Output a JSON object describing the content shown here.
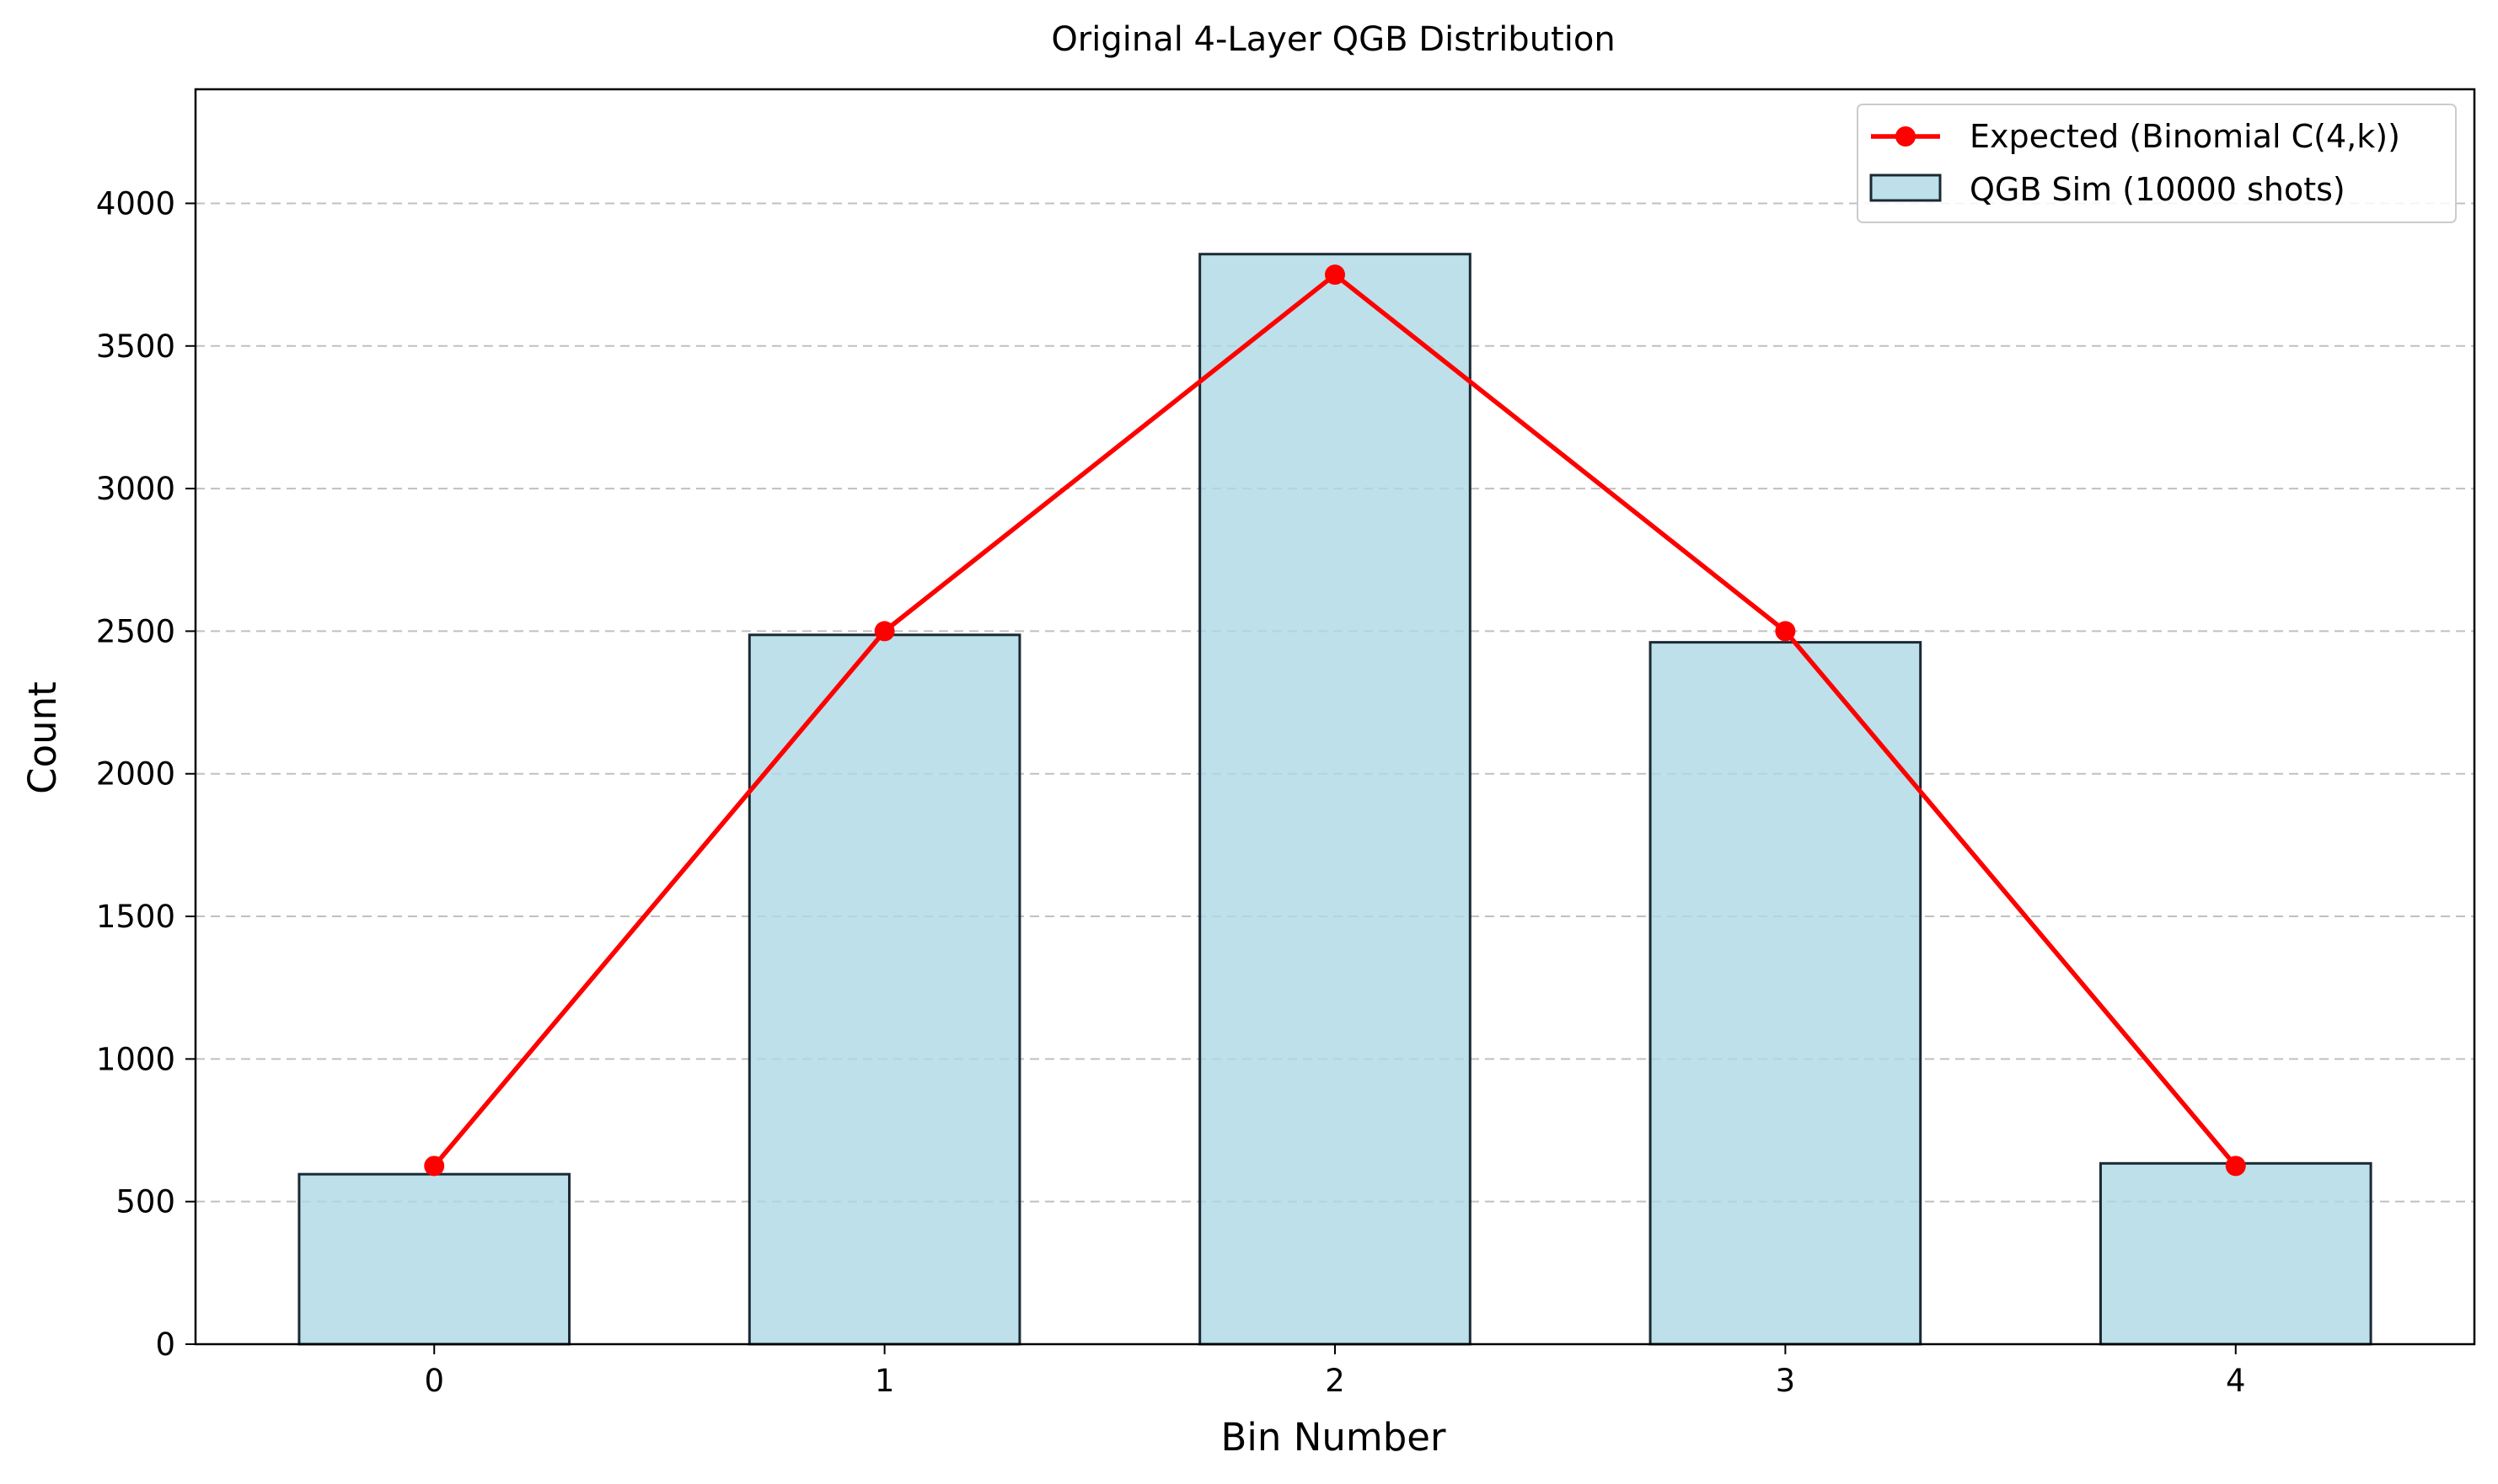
{
  "chart_data": {
    "type": "bar",
    "title": "Original 4-Layer QGB Distribution",
    "xlabel": "Bin Number",
    "ylabel": "Count",
    "categories": [
      "0",
      "1",
      "2",
      "3",
      "4"
    ],
    "x": [
      0,
      1,
      2,
      3,
      4
    ],
    "xlim": [
      -0.53,
      4.53
    ],
    "ylim": [
      0,
      4400
    ],
    "yticks": [
      0,
      500,
      1000,
      1500,
      2000,
      2500,
      3000,
      3500,
      4000
    ],
    "grid": "y-dashed",
    "legend_position": "top-right",
    "series": [
      {
        "name": "QGB Sim (10000 shots)",
        "kind": "bar",
        "values": [
          596,
          2487,
          3822,
          2461,
          634
        ],
        "fill": "#add8e6",
        "edge": "#1a2a33"
      },
      {
        "name": "Expected (Binomial C(4,k))",
        "kind": "line",
        "values": [
          625,
          2500,
          3750,
          2500,
          625
        ],
        "color": "#ff0000"
      }
    ]
  }
}
